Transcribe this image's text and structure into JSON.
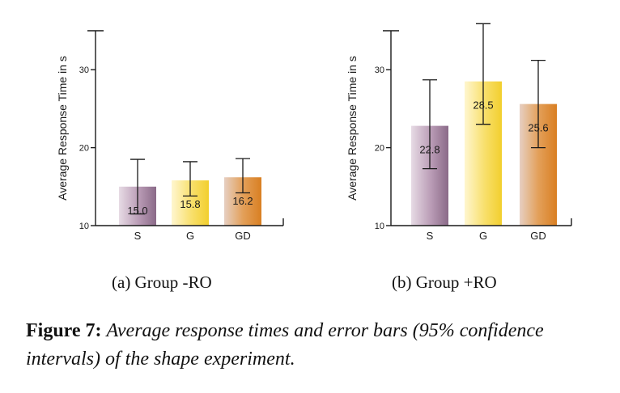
{
  "figure": {
    "subcaptions": [
      "(a)  Group -RO",
      "(b)  Group +RO"
    ],
    "caption_label": "Figure 7:",
    "caption_text": "Average response times and error bars (95% confidence intervals) of the shape experiment."
  },
  "colors": {
    "S": "#9b7a99",
    "G": "#f5d43a",
    "GD": "#dd8a2e"
  },
  "chart_data": [
    {
      "type": "bar",
      "title": "",
      "ylabel": "Average Response Time in s",
      "xlabel": "",
      "ylim": [
        10,
        35
      ],
      "yticks": [
        10,
        20,
        30
      ],
      "categories": [
        "S",
        "G",
        "GD"
      ],
      "values": [
        15.0,
        15.8,
        16.2
      ],
      "value_labels": [
        "15.0",
        "15.8",
        "16.2"
      ],
      "error_bars": [
        [
          11.5,
          18.5
        ],
        [
          13.8,
          18.2
        ],
        [
          14.2,
          18.6
        ]
      ],
      "grid": false
    },
    {
      "type": "bar",
      "title": "",
      "ylabel": "Average Response Time in s",
      "xlabel": "",
      "ylim": [
        10,
        35
      ],
      "yticks": [
        10,
        20,
        30
      ],
      "categories": [
        "S",
        "G",
        "GD"
      ],
      "values": [
        22.8,
        28.5,
        25.6
      ],
      "value_labels": [
        "22.8",
        "28.5",
        "25.6"
      ],
      "error_bars": [
        [
          17.3,
          28.7
        ],
        [
          23.0,
          35.9
        ],
        [
          20.0,
          31.2
        ]
      ],
      "grid": false
    }
  ]
}
